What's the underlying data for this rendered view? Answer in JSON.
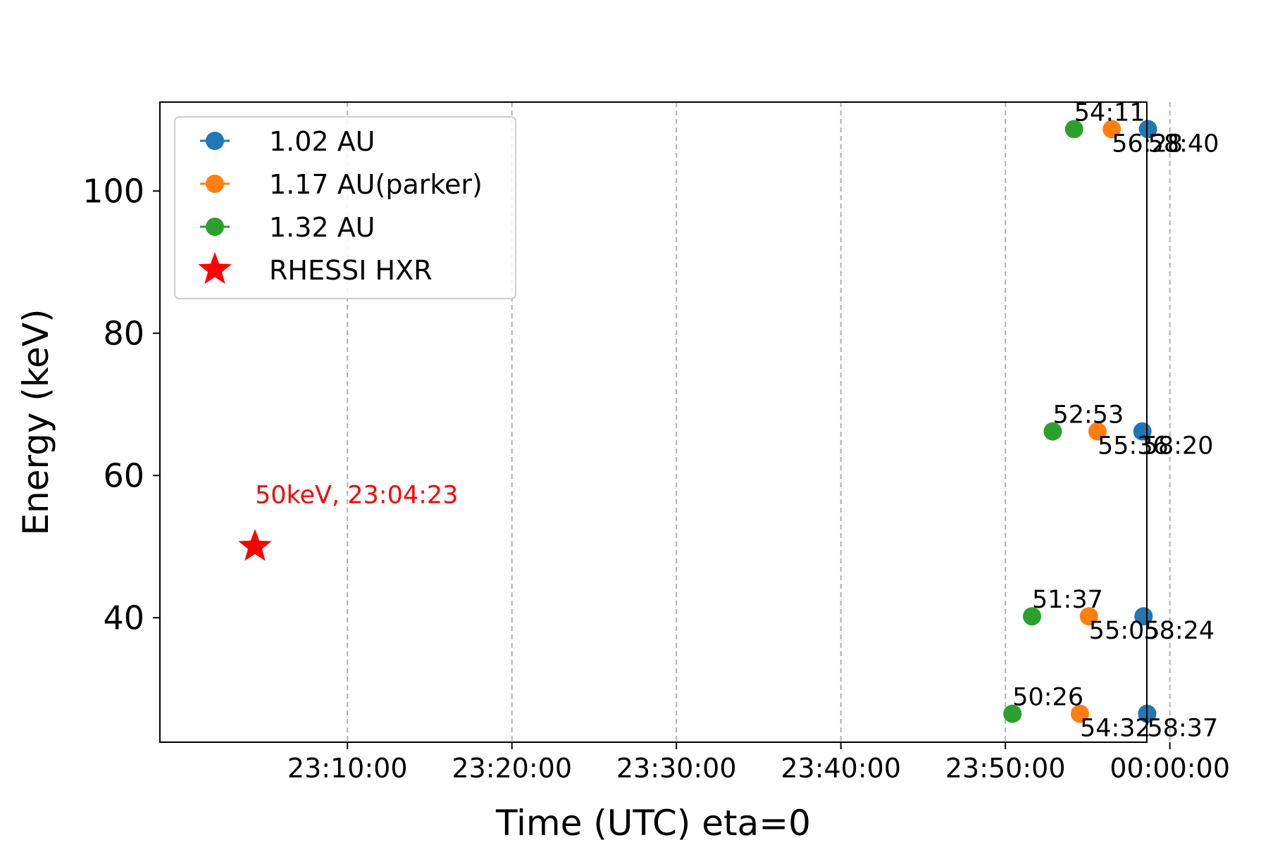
{
  "chart_data": {
    "type": "scatter",
    "title": "",
    "xlabel": "Time (UTC) eta=0",
    "ylabel": "Energy (keV)",
    "x_unit": "minutes after 23:00:00 UTC",
    "xlim": [
      -1.4,
      58.6
    ],
    "ylim": [
      22.5,
      112.5
    ],
    "x_tick_values": [
      10,
      20,
      30,
      40,
      50,
      60
    ],
    "x_ticks": [
      "23:10:00",
      "23:20:00",
      "23:30:00",
      "23:40:00",
      "23:50:00",
      "00:00:00"
    ],
    "y_ticks": [
      40,
      60,
      80,
      100
    ],
    "grid": "x-dashed",
    "legend": "top-left",
    "series": [
      {
        "name": "1.02 AU",
        "color": "#1f77b4",
        "marker": "circle",
        "points": [
          {
            "x": 58.62,
            "y": 26.5,
            "label": "58:37"
          },
          {
            "x": 58.4,
            "y": 40.2,
            "label": "58:24"
          },
          {
            "x": 58.33,
            "y": 66.2,
            "label": "58:20"
          },
          {
            "x": 58.67,
            "y": 108.7,
            "label": "58:40"
          }
        ]
      },
      {
        "name": "1.17 AU(parker)",
        "color": "#ff7f0e",
        "marker": "circle",
        "points": [
          {
            "x": 54.53,
            "y": 26.5,
            "label": "54:32"
          },
          {
            "x": 55.08,
            "y": 40.2,
            "label": "55:05"
          },
          {
            "x": 55.6,
            "y": 66.2,
            "label": "55:36"
          },
          {
            "x": 56.47,
            "y": 108.7,
            "label": "56:28"
          }
        ]
      },
      {
        "name": "1.32 AU",
        "color": "#2ca02c",
        "marker": "circle",
        "points": [
          {
            "x": 50.43,
            "y": 26.5,
            "label": "50:26"
          },
          {
            "x": 51.62,
            "y": 40.2,
            "label": "51:37"
          },
          {
            "x": 52.88,
            "y": 66.2,
            "label": "52:53"
          },
          {
            "x": 54.18,
            "y": 108.7,
            "label": "54:11"
          }
        ]
      },
      {
        "name": "RHESSI HXR",
        "color": "#ff0000",
        "marker": "star",
        "points": [
          {
            "x": 4.38,
            "y": 50,
            "label": "50keV, 23:04:23"
          }
        ]
      }
    ]
  }
}
